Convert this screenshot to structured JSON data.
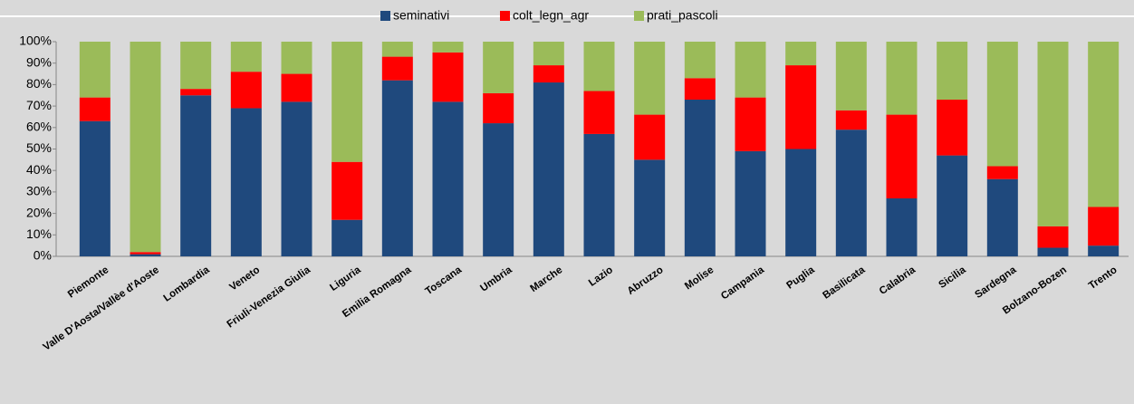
{
  "chart_data": {
    "type": "stacked_bar",
    "categories": [
      "Piemonte",
      "Valle D'Aosta/Vallèe d'Aoste",
      "Lombardia",
      "Veneto",
      "Friuli-Venezia Giulia",
      "Liguria",
      "Emilia Romagna",
      "Toscana",
      "Umbria",
      "Marche",
      "Lazio",
      "Abruzzo",
      "Molise",
      "Campania",
      "Puglia",
      "Basilicata",
      "Calabria",
      "Sicilia",
      "Sardegna",
      "Bolzano-Bozen",
      "Trento"
    ],
    "series": [
      {
        "name": "seminativi",
        "color": "#1f497d",
        "values": [
          63,
          1,
          75,
          69,
          72,
          17,
          82,
          72,
          62,
          81,
          57,
          45,
          73,
          49,
          50,
          59,
          27,
          47,
          36,
          4,
          5
        ]
      },
      {
        "name": "colt_legn_agr",
        "color": "#ff0000",
        "values": [
          11,
          1,
          3,
          17,
          13,
          27,
          11,
          23,
          14,
          8,
          20,
          21,
          10,
          25,
          39,
          9,
          39,
          26,
          6,
          10,
          18
        ]
      },
      {
        "name": "prati_pascoli",
        "color": "#9bbb59",
        "values": [
          26,
          98,
          22,
          14,
          15,
          56,
          7,
          5,
          24,
          11,
          23,
          34,
          17,
          26,
          11,
          32,
          34,
          27,
          58,
          86,
          77
        ]
      }
    ],
    "ylim": [
      0,
      100
    ],
    "yticks": [
      {
        "value": 0,
        "label": "0%"
      },
      {
        "value": 10,
        "label": "10%"
      },
      {
        "value": 20,
        "label": "20%"
      },
      {
        "value": 30,
        "label": "30%"
      },
      {
        "value": 40,
        "label": "40%"
      },
      {
        "value": 50,
        "label": "50%"
      },
      {
        "value": 60,
        "label": "60%"
      },
      {
        "value": 70,
        "label": "70%"
      },
      {
        "value": 80,
        "label": "80%"
      },
      {
        "value": 90,
        "label": "90%"
      },
      {
        "value": 100,
        "label": "100%"
      }
    ],
    "legend": "top"
  }
}
